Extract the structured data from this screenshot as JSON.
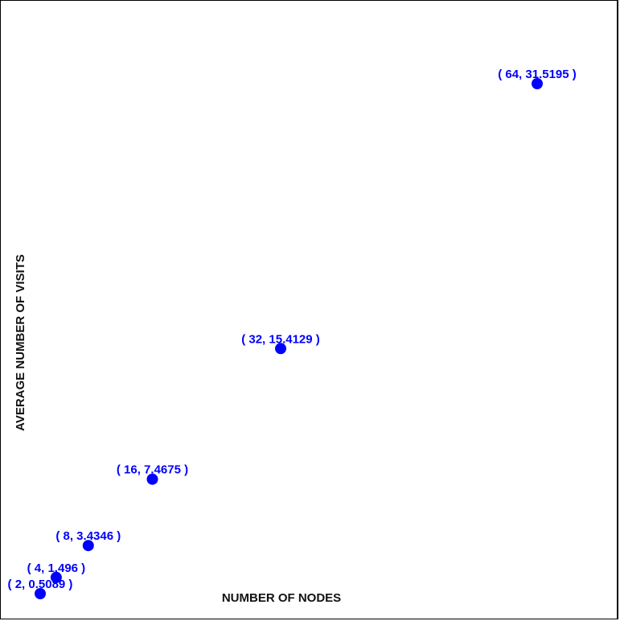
{
  "chart_data": {
    "type": "scatter",
    "xlabel": "NUMBER OF NODES",
    "ylabel": "AVERAGE NUMBER OF VISITS",
    "x": [
      2,
      4,
      8,
      16,
      32,
      64
    ],
    "y": [
      0.5089,
      1.496,
      3.4346,
      7.4675,
      15.4129,
      31.5195
    ],
    "point_labels": [
      "( 2, 0.5089 )",
      "( 4, 1.496 )",
      "( 8, 3.4346 )",
      "( 16, 7.4675 )",
      "( 32, 15.4129 )",
      "( 64, 31.5195 )"
    ],
    "marker_color": "#0000ff",
    "label_color": "#0000ff",
    "grid": false,
    "legend": "none"
  }
}
